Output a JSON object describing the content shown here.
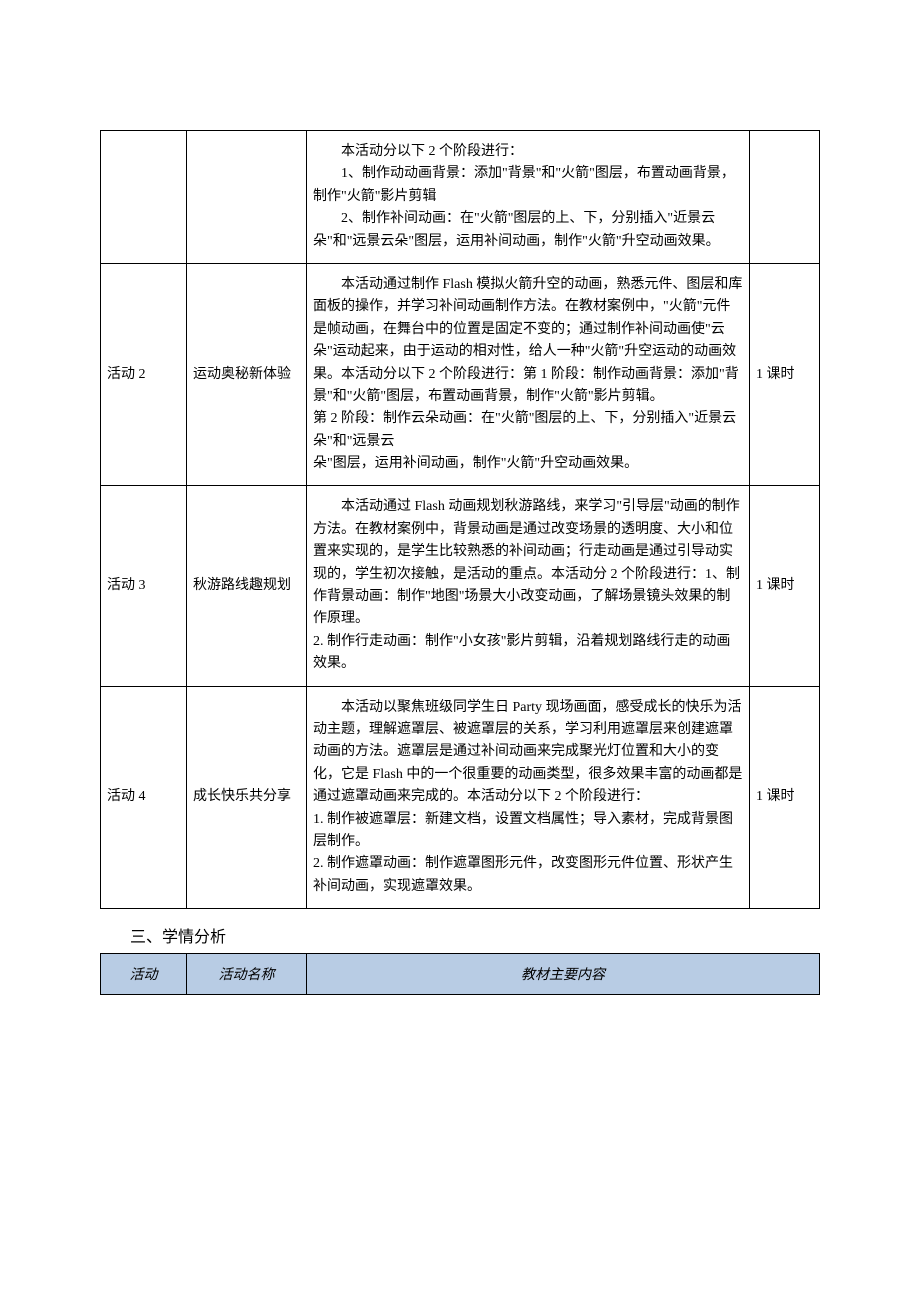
{
  "table1": {
    "rows": [
      {
        "activity": "",
        "name": "",
        "content": "　　本活动分以下 2 个阶段进行：\n　　1、制作动动画背景：添加\"背景\"和\"火箭\"图层，布置动画背景，制作\"火箭\"影片剪辑\n　　2、制作补间动画：在\"火箭\"图层的上、下，分别插入\"近景云朵\"和\"远景云朵\"图层，运用补间动画，制作\"火箭\"升空动画效果。",
        "hours": ""
      },
      {
        "activity": "活动 2",
        "name": "运动奥秘新体验",
        "content": "　　本活动通过制作 Flash 模拟火箭升空的动画，熟悉元件、图层和库面板的操作，并学习补间动画制作方法。在教材案例中，\"火箭\"元件是帧动画，在舞台中的位置是固定不变的；通过制作补间动画使\"云朵\"运动起来，由于运动的相对性，给人一种\"火箭\"升空运动的动画效果。本活动分以下 2 个阶段进行：第 1 阶段：制作动画背景：添加\"背景\"和\"火箭\"图层，布置动画背景，制作\"火箭\"影片剪辑。\n第 2 阶段：制作云朵动画：在\"火箭\"图层的上、下，分别插入\"近景云朵\"和\"远景云\n朵\"图层，运用补间动画，制作\"火箭\"升空动画效果。",
        "hours": "1 课时"
      },
      {
        "activity": "活动 3",
        "name": "秋游路线趣规划",
        "content": "　　本活动通过 Flash 动画规划秋游路线，来学习\"引导层\"动画的制作方法。在教材案例中，背景动画是通过改变场景的透明度、大小和位置来实现的，是学生比较熟悉的补间动画；行走动画是通过引导动实现的，学生初次接触，是活动的重点。本活动分 2 个阶段进行：1、制作背景动画：制作\"地图\"场景大小改变动画，了解场景镜头效果的制作原理。\n2. 制作行走动画：制作\"小女孩\"影片剪辑，沿着规划路线行走的动画效果。",
        "hours": "1 课时"
      },
      {
        "activity": "活动 4",
        "name": "成长快乐共分享",
        "content": "　　本活动以聚焦班级同学生日 Party 现场画面，感受成长的快乐为活动主题，理解遮罩层、被遮罩层的关系，学习利用遮罩层来创建遮罩动画的方法。遮罩层是通过补间动画来完成聚光灯位置和大小的变化，它是 Flash 中的一个很重要的动画类型，很多效果丰富的动画都是通过遮罩动画来完成的。本活动分以下 2 个阶段进行：\n1. 制作被遮罩层：新建文档，设置文档属性；导入素材，完成背景图层制作。\n2. 制作遮罩动画：制作遮罩图形元件，改变图形元件位置、形状产生补间动画，实现遮罩效果。",
        "hours": "1 课时"
      }
    ]
  },
  "section_title": "三、学情分析",
  "table2_header": {
    "c1": "活动",
    "c2": "活动名称",
    "c3": "教材主要内容"
  },
  "colors": {
    "header_bg": "#b8cce4",
    "border": "#000000",
    "page_bg": "#ffffff"
  }
}
